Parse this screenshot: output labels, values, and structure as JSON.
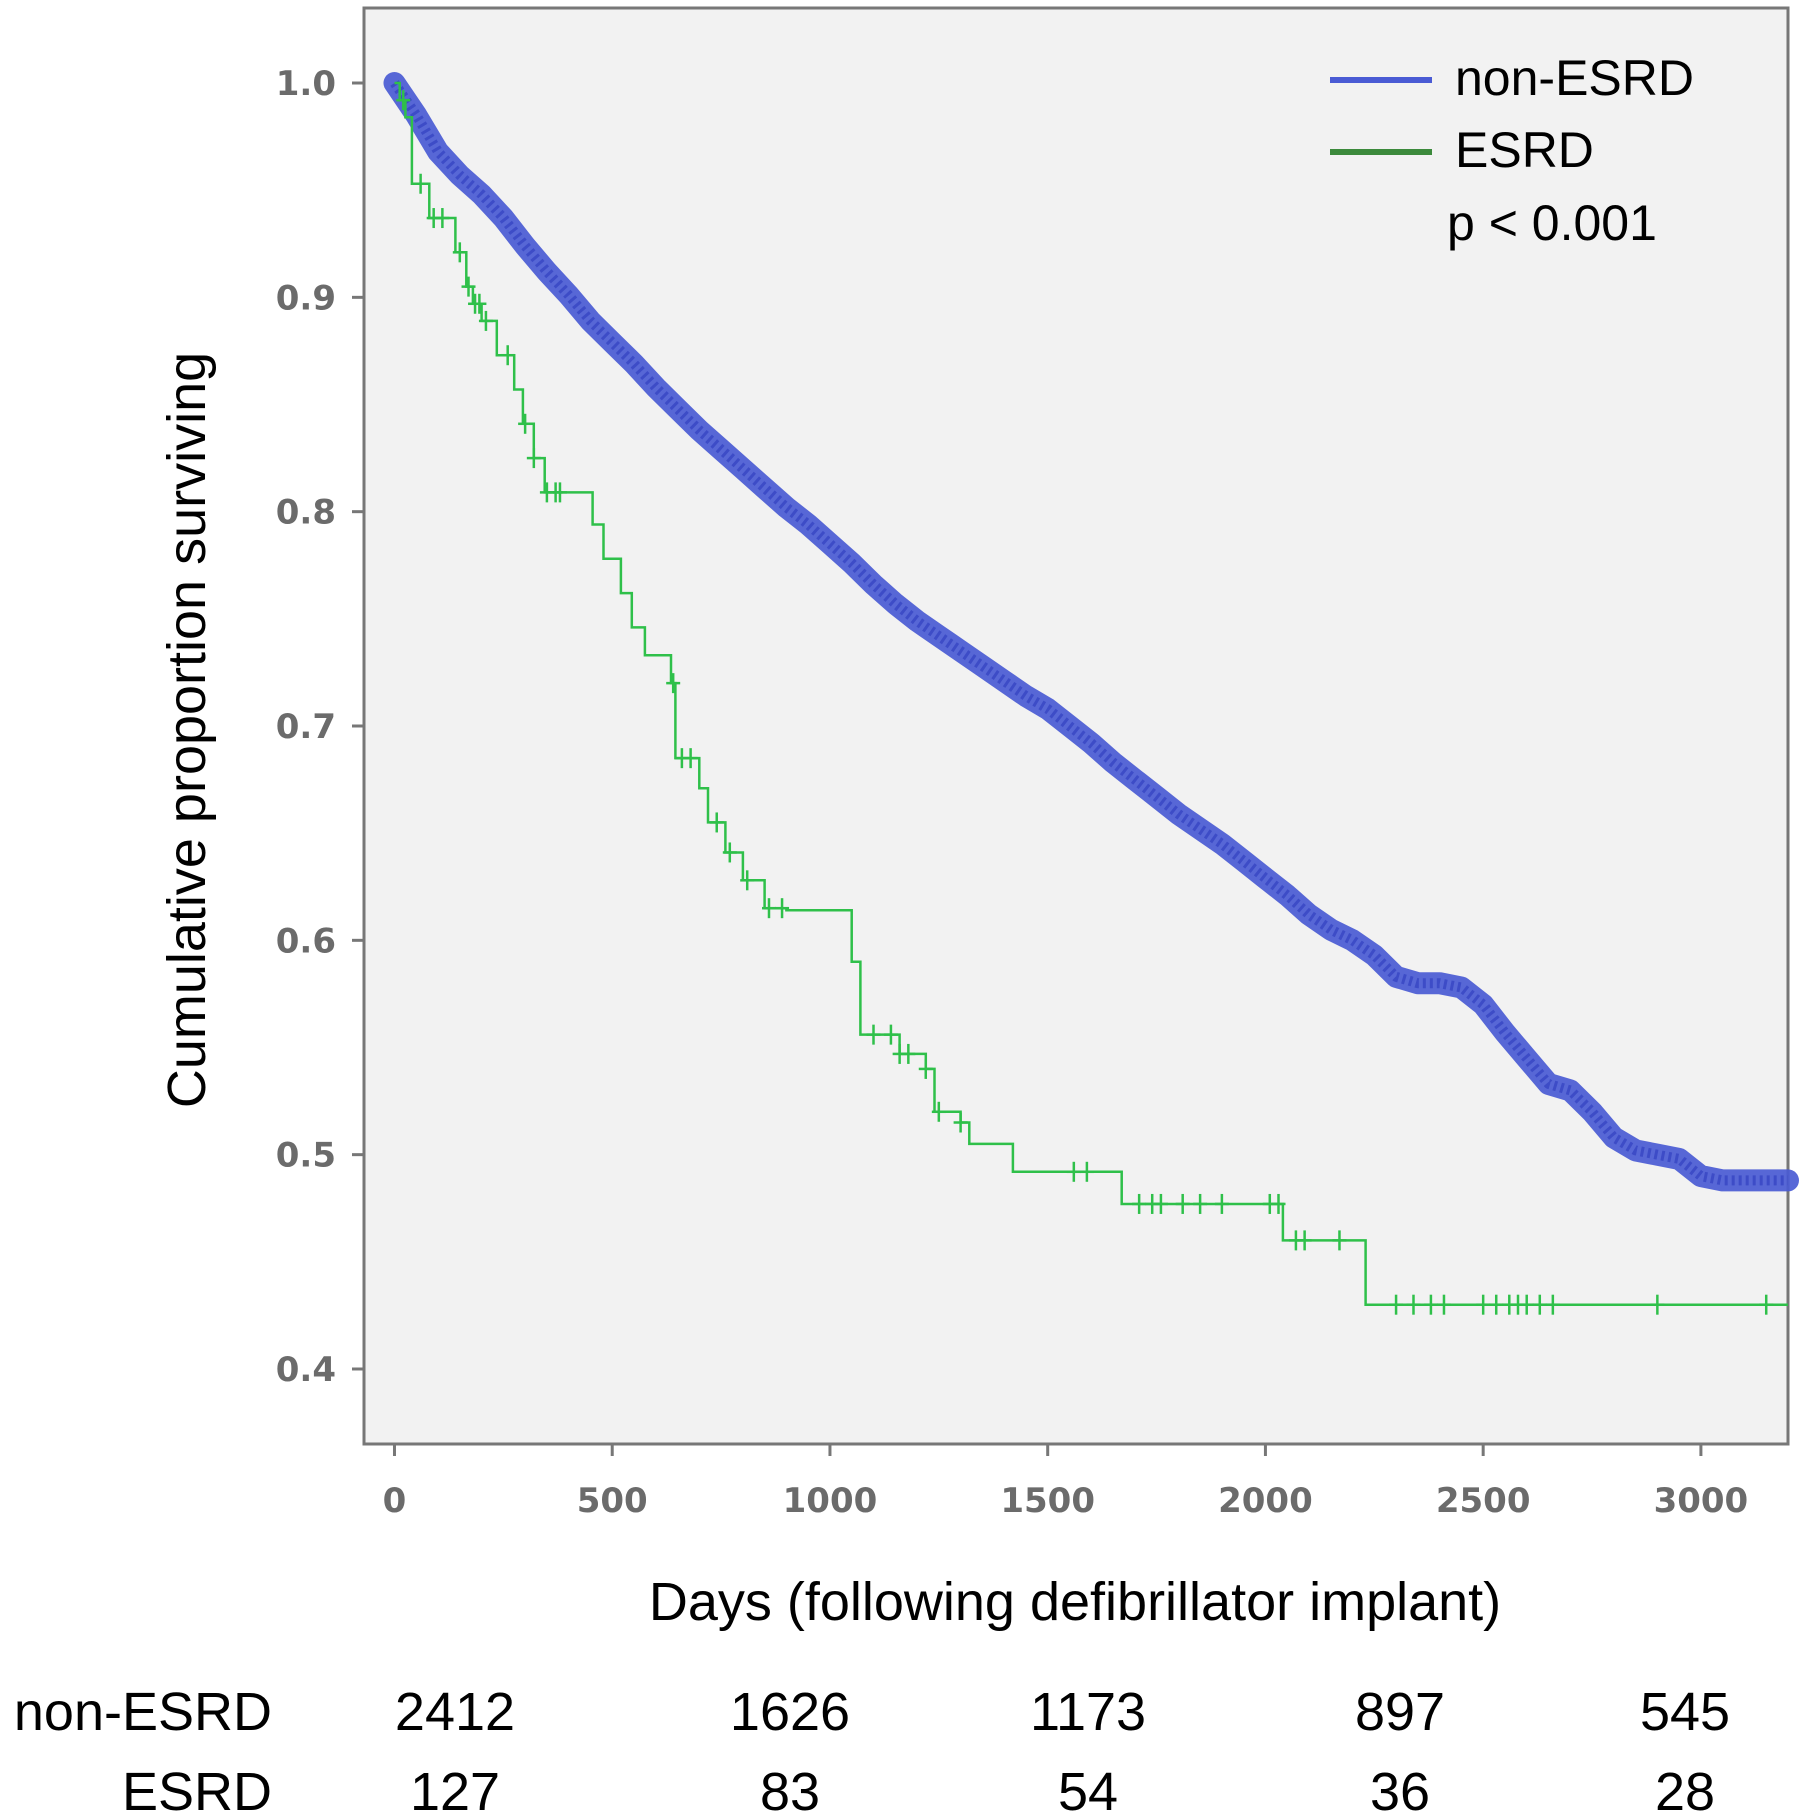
{
  "chart_data": {
    "type": "line",
    "subtype": "kaplan-meier",
    "xlabel": "Days (following defibrillator implant)",
    "ylabel": "Cumulative proportion surviving",
    "xlim": [
      -70,
      3200
    ],
    "ylim": [
      0.365,
      1.035
    ],
    "xticks": [
      "0",
      "500",
      "1000",
      "1500",
      "2000",
      "2500",
      "3000"
    ],
    "xtick_values": [
      0,
      500,
      1000,
      1500,
      2000,
      2500,
      3000
    ],
    "yticks": [
      "0.4",
      "0.5",
      "0.6",
      "0.7",
      "0.8",
      "0.9",
      "1.0"
    ],
    "ytick_values": [
      0.4,
      0.5,
      0.6,
      0.7,
      0.8,
      0.9,
      1.0
    ],
    "legend_position": "top-right",
    "annotation": "p < 0.001",
    "plot_background": "#f2f2f2",
    "series": [
      {
        "name": "non-ESRD",
        "color": "#4a5bd4",
        "x": [
          0,
          50,
          100,
          150,
          200,
          250,
          300,
          350,
          400,
          450,
          500,
          550,
          600,
          650,
          700,
          750,
          800,
          850,
          900,
          950,
          1000,
          1050,
          1100,
          1150,
          1200,
          1250,
          1300,
          1350,
          1400,
          1450,
          1500,
          1550,
          1600,
          1650,
          1700,
          1750,
          1800,
          1850,
          1900,
          1950,
          2000,
          2050,
          2100,
          2150,
          2200,
          2250,
          2300,
          2350,
          2400,
          2450,
          2500,
          2550,
          2600,
          2650,
          2700,
          2750,
          2800,
          2850,
          2900,
          2950,
          3000,
          3050,
          3100,
          3150,
          3200
        ],
        "y": [
          1.0,
          0.985,
          0.968,
          0.957,
          0.948,
          0.937,
          0.924,
          0.912,
          0.901,
          0.889,
          0.879,
          0.869,
          0.858,
          0.848,
          0.838,
          0.829,
          0.82,
          0.811,
          0.802,
          0.794,
          0.785,
          0.776,
          0.766,
          0.757,
          0.749,
          0.742,
          0.735,
          0.728,
          0.721,
          0.714,
          0.708,
          0.7,
          0.692,
          0.683,
          0.675,
          0.667,
          0.659,
          0.652,
          0.645,
          0.637,
          0.629,
          0.621,
          0.612,
          0.605,
          0.6,
          0.593,
          0.583,
          0.58,
          0.58,
          0.578,
          0.57,
          0.557,
          0.545,
          0.533,
          0.53,
          0.52,
          0.508,
          0.502,
          0.5,
          0.498,
          0.49,
          0.488,
          0.488,
          0.488,
          0.488
        ]
      },
      {
        "name": "ESRD",
        "color": "#2fc04a",
        "steps_x": [
          0,
          12,
          25,
          40,
          80,
          140,
          165,
          180,
          200,
          235,
          275,
          295,
          320,
          345,
          455,
          480,
          520,
          545,
          575,
          635,
          645,
          700,
          720,
          760,
          800,
          850,
          900,
          1050,
          1070,
          1120,
          1160,
          1220,
          1240,
          1300,
          1320,
          1420,
          1670,
          2040,
          2060,
          2230,
          3200
        ],
        "steps_y": [
          1.0,
          0.992,
          0.984,
          0.953,
          0.937,
          0.921,
          0.905,
          0.897,
          0.889,
          0.873,
          0.857,
          0.841,
          0.825,
          0.809,
          0.794,
          0.778,
          0.762,
          0.746,
          0.733,
          0.72,
          0.685,
          0.671,
          0.655,
          0.641,
          0.628,
          0.615,
          0.614,
          0.59,
          0.556,
          0.556,
          0.547,
          0.54,
          0.52,
          0.515,
          0.505,
          0.492,
          0.477,
          0.46,
          0.46,
          0.43,
          0.43
        ],
        "censored_x": [
          20,
          60,
          90,
          110,
          150,
          170,
          185,
          195,
          210,
          260,
          300,
          320,
          350,
          370,
          380,
          640,
          660,
          680,
          740,
          770,
          810,
          860,
          890,
          1100,
          1140,
          1160,
          1180,
          1220,
          1250,
          1300,
          1560,
          1590,
          1710,
          1740,
          1760,
          1810,
          1850,
          1900,
          2010,
          2030,
          2070,
          2090,
          2170,
          2300,
          2340,
          2380,
          2410,
          2500,
          2530,
          2560,
          2580,
          2600,
          2630,
          2660,
          2900,
          3150
        ]
      }
    ],
    "risk_table": {
      "rows": [
        {
          "label": "non-ESRD",
          "values": [
            "2412",
            "1626",
            "1173",
            "897",
            "545"
          ]
        },
        {
          "label": "ESRD",
          "values": [
            "127",
            "83",
            "54",
            "36",
            "28"
          ]
        }
      ]
    }
  }
}
